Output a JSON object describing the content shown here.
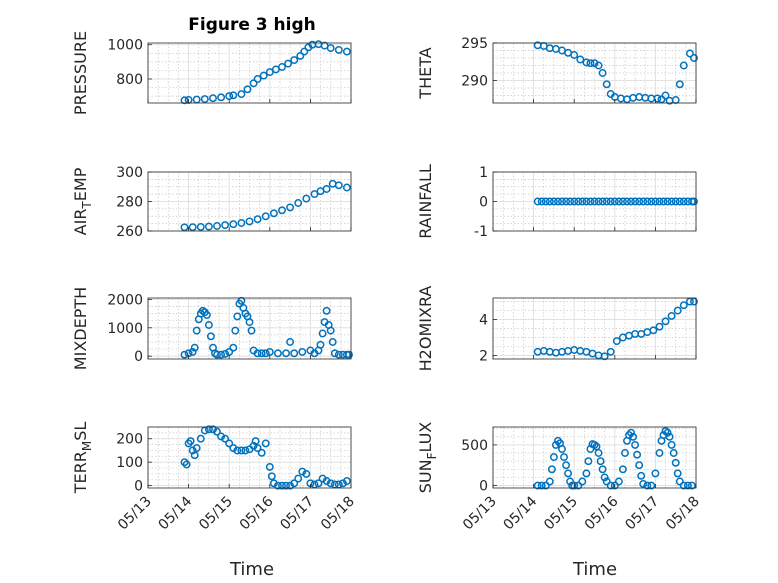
{
  "figure": {
    "title": "Figure 3 high",
    "xlabel": "Time"
  },
  "colors": {
    "marker": "#0072BD",
    "axis": "#262626"
  },
  "chart_data": [
    {
      "type": "scatter",
      "ylabel": "PRESSURE",
      "ylabel_sub": "",
      "ylim": [
        660,
        1010
      ],
      "yticks": [
        800,
        1000
      ],
      "minor_step": 50,
      "series": [
        {
          "x": [
            13.9,
            14.0,
            14.2,
            14.4,
            14.6,
            14.8,
            15.0,
            15.1,
            15.3,
            15.45,
            15.6,
            15.7,
            15.85,
            16.0,
            16.15,
            16.3,
            16.45,
            16.6,
            16.75,
            16.85,
            16.95,
            17.05,
            17.2,
            17.35,
            17.5,
            17.7,
            17.9
          ],
          "y": [
            676,
            678,
            680,
            683,
            688,
            693,
            700,
            705,
            712,
            740,
            775,
            800,
            820,
            840,
            856,
            870,
            890,
            910,
            935,
            960,
            985,
            1000,
            1003,
            995,
            980,
            970,
            960
          ]
        }
      ]
    },
    {
      "type": "scatter",
      "ylabel": "THETA",
      "ylabel_sub": "",
      "ylim": [
        287,
        295
      ],
      "yticks": [
        290,
        295
      ],
      "minor_step": 1,
      "series": [
        {
          "x": [
            14.1,
            14.25,
            14.4,
            14.55,
            14.7,
            14.85,
            15.0,
            15.15,
            15.3,
            15.4,
            15.5,
            15.6,
            15.7,
            15.8,
            15.9,
            16.0,
            16.15,
            16.3,
            16.45,
            16.6,
            16.75,
            16.9,
            17.05,
            17.15,
            17.25,
            17.35,
            17.5,
            17.6,
            17.7,
            17.85,
            17.95
          ],
          "y": [
            294.7,
            294.6,
            294.3,
            294.2,
            294.0,
            293.7,
            293.4,
            292.8,
            292.4,
            292.3,
            292.3,
            292.0,
            291.0,
            289.5,
            288.2,
            287.8,
            287.6,
            287.5,
            287.7,
            287.8,
            287.7,
            287.6,
            287.6,
            287.5,
            288.0,
            287.3,
            287.4,
            289.5,
            292.0,
            293.6,
            293.0
          ]
        }
      ]
    },
    {
      "type": "scatter",
      "ylabel": "AIR",
      "ylabel_sub": "T",
      "ylabel_suffix": "EMP",
      "ylim": [
        260,
        300
      ],
      "yticks": [
        260,
        280,
        300
      ],
      "minor_step": 5,
      "series": [
        {
          "x": [
            13.9,
            14.1,
            14.3,
            14.5,
            14.7,
            14.9,
            15.1,
            15.3,
            15.5,
            15.7,
            15.9,
            16.1,
            16.3,
            16.5,
            16.7,
            16.9,
            17.1,
            17.25,
            17.4,
            17.55,
            17.7,
            17.9
          ],
          "y": [
            262.5,
            262.6,
            262.8,
            263.0,
            263.4,
            264.0,
            264.6,
            265.4,
            266.5,
            268.0,
            270.0,
            272.0,
            274.0,
            276.0,
            279.0,
            282.0,
            285.0,
            287.0,
            288.5,
            292.0,
            291.0,
            289.5
          ]
        }
      ]
    },
    {
      "type": "scatter",
      "ylabel": "RAINFALL",
      "ylabel_sub": "",
      "ylim": [
        -1,
        1
      ],
      "yticks": [
        -1,
        0,
        1
      ],
      "minor_step": 0.25,
      "series": [
        {
          "x": [
            14.1,
            14.2,
            14.3,
            14.4,
            14.5,
            14.6,
            14.7,
            14.8,
            14.9,
            15.0,
            15.1,
            15.2,
            15.3,
            15.4,
            15.5,
            15.6,
            15.7,
            15.8,
            15.9,
            16.0,
            16.1,
            16.2,
            16.3,
            16.4,
            16.5,
            16.6,
            16.7,
            16.8,
            16.9,
            17.0,
            17.1,
            17.2,
            17.3,
            17.4,
            17.5,
            17.6,
            17.7,
            17.8,
            17.9,
            17.95
          ],
          "y": [
            0,
            0,
            0,
            0,
            0,
            0,
            0,
            0,
            0,
            0,
            0,
            0,
            0,
            0,
            0,
            0,
            0,
            0,
            0,
            0,
            0,
            0,
            0,
            0,
            0,
            0,
            0,
            0,
            0,
            0,
            0,
            0,
            0,
            0,
            0,
            0,
            0,
            0,
            0,
            0
          ]
        }
      ]
    },
    {
      "type": "scatter",
      "ylabel": "MIXDEPTH",
      "ylabel_sub": "",
      "ylim": [
        -100,
        2050
      ],
      "yticks": [
        0,
        1000,
        2000
      ],
      "minor_step": 250,
      "series": [
        {
          "x": [
            13.9,
            14.0,
            14.1,
            14.15,
            14.2,
            14.25,
            14.3,
            14.35,
            14.4,
            14.45,
            14.5,
            14.55,
            14.6,
            14.65,
            14.7,
            14.8,
            14.9,
            15.0,
            15.1,
            15.15,
            15.2,
            15.25,
            15.3,
            15.35,
            15.4,
            15.45,
            15.5,
            15.55,
            15.6,
            15.7,
            15.8,
            15.9,
            16.0,
            16.2,
            16.4,
            16.5,
            16.6,
            16.8,
            17.0,
            17.1,
            17.2,
            17.25,
            17.3,
            17.35,
            17.4,
            17.45,
            17.5,
            17.55,
            17.6,
            17.7,
            17.8,
            17.9,
            17.95
          ],
          "y": [
            50,
            100,
            150,
            300,
            900,
            1300,
            1500,
            1600,
            1550,
            1450,
            1100,
            700,
            300,
            100,
            50,
            50,
            80,
            150,
            300,
            900,
            1400,
            1850,
            1950,
            1700,
            1500,
            1400,
            1200,
            900,
            200,
            100,
            100,
            100,
            150,
            100,
            100,
            500,
            100,
            150,
            200,
            100,
            200,
            400,
            800,
            1200,
            1600,
            1100,
            900,
            500,
            100,
            50,
            50,
            50,
            50
          ]
        }
      ]
    },
    {
      "type": "scatter",
      "ylabel": "H2OMIXRA",
      "ylabel_sub": "",
      "ylim": [
        1.8,
        5.2
      ],
      "yticks": [
        2,
        4
      ],
      "minor_step": 0.5,
      "series": [
        {
          "x": [
            14.1,
            14.25,
            14.4,
            14.55,
            14.7,
            14.85,
            15.0,
            15.15,
            15.3,
            15.45,
            15.6,
            15.75,
            15.9,
            16.05,
            16.2,
            16.35,
            16.5,
            16.65,
            16.8,
            16.95,
            17.1,
            17.25,
            17.4,
            17.55,
            17.7,
            17.85,
            17.95
          ],
          "y": [
            2.2,
            2.25,
            2.2,
            2.15,
            2.2,
            2.25,
            2.3,
            2.25,
            2.2,
            2.1,
            2.0,
            1.95,
            2.2,
            2.8,
            3.0,
            3.1,
            3.2,
            3.2,
            3.3,
            3.4,
            3.6,
            3.9,
            4.2,
            4.5,
            4.8,
            5.0,
            5.0
          ]
        }
      ]
    },
    {
      "type": "scatter",
      "ylabel": "TERR",
      "ylabel_sub": "M",
      "ylabel_suffix": "SL",
      "ylim": [
        -10,
        250
      ],
      "yticks": [
        0,
        100,
        200
      ],
      "minor_step": 25,
      "series": [
        {
          "x": [
            13.9,
            13.95,
            14.0,
            14.05,
            14.1,
            14.15,
            14.2,
            14.3,
            14.4,
            14.5,
            14.6,
            14.7,
            14.8,
            14.9,
            15.0,
            15.1,
            15.2,
            15.3,
            15.4,
            15.5,
            15.6,
            15.65,
            15.7,
            15.8,
            15.9,
            16.0,
            16.05,
            16.1,
            16.2,
            16.3,
            16.4,
            16.5,
            16.6,
            16.7,
            16.8,
            16.9,
            17.0,
            17.1,
            17.2,
            17.3,
            17.4,
            17.5,
            17.6,
            17.7,
            17.8,
            17.9
          ],
          "y": [
            100,
            90,
            180,
            190,
            150,
            130,
            160,
            200,
            235,
            240,
            240,
            230,
            210,
            200,
            180,
            160,
            150,
            150,
            150,
            155,
            170,
            190,
            160,
            140,
            180,
            80,
            40,
            10,
            0,
            0,
            0,
            0,
            10,
            30,
            60,
            50,
            10,
            5,
            10,
            30,
            20,
            10,
            5,
            5,
            10,
            20
          ]
        }
      ]
    },
    {
      "type": "scatter",
      "ylabel": "SUN",
      "ylabel_sub": "F",
      "ylabel_suffix": "LUX",
      "ylim": [
        -30,
        720
      ],
      "yticks": [
        0,
        500
      ],
      "minor_step": 100,
      "series": [
        {
          "x": [
            14.1,
            14.2,
            14.3,
            14.4,
            14.45,
            14.5,
            14.55,
            14.6,
            14.65,
            14.7,
            14.75,
            14.8,
            14.85,
            14.9,
            14.95,
            15.0,
            15.1,
            15.2,
            15.3,
            15.35,
            15.4,
            15.45,
            15.5,
            15.55,
            15.6,
            15.65,
            15.7,
            15.75,
            15.8,
            15.9,
            16.0,
            16.1,
            16.2,
            16.25,
            16.3,
            16.35,
            16.4,
            16.45,
            16.5,
            16.55,
            16.6,
            16.65,
            16.7,
            16.8,
            16.9,
            17.0,
            17.1,
            17.15,
            17.2,
            17.25,
            17.3,
            17.35,
            17.4,
            17.45,
            17.5,
            17.55,
            17.6,
            17.7,
            17.8,
            17.9
          ],
          "y": [
            0,
            0,
            0,
            50,
            200,
            350,
            500,
            550,
            520,
            450,
            350,
            250,
            150,
            50,
            0,
            0,
            0,
            50,
            150,
            300,
            450,
            510,
            500,
            480,
            400,
            300,
            200,
            100,
            50,
            0,
            0,
            50,
            200,
            400,
            550,
            620,
            650,
            600,
            500,
            380,
            250,
            120,
            20,
            0,
            0,
            150,
            400,
            550,
            620,
            670,
            650,
            600,
            500,
            400,
            280,
            150,
            50,
            0,
            0,
            0
          ]
        }
      ]
    }
  ],
  "x_axis": {
    "ticks": [
      13,
      14,
      15,
      16,
      17,
      18
    ],
    "tick_labels": [
      "05/13",
      "05/14",
      "05/15",
      "05/16",
      "05/17",
      "05/18"
    ],
    "xlim": [
      13,
      18
    ]
  }
}
